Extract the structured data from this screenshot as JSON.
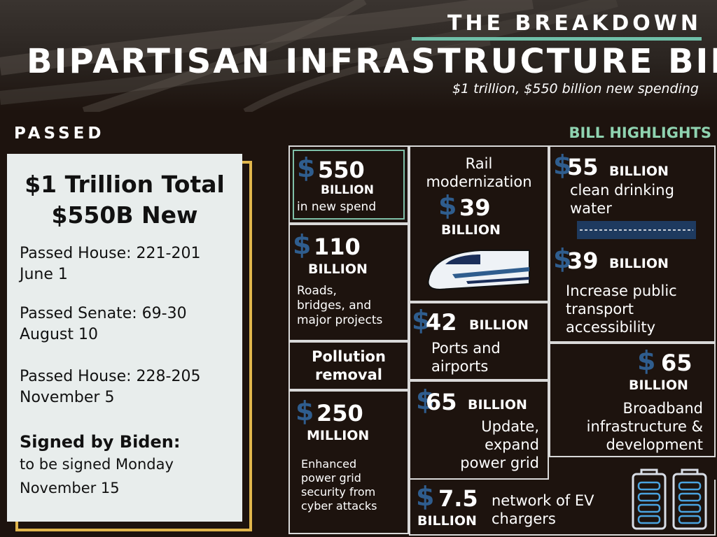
{
  "header": {
    "kicker": "THE BREAKDOWN",
    "title": "BIPARTISAN INFRASTRUCTURE BILL",
    "subtitle": "$1 trillion, $550 billion new spending"
  },
  "sections": {
    "passed": "PASSED",
    "highlights": "BILL HIGHLIGHTS"
  },
  "summary": {
    "total_line1": "$1 Trillion Total",
    "total_line2": "$550B New",
    "house1_label": "Passed House: 221-201",
    "house1_date": "June 1",
    "senate_label": "Passed Senate: 69-30",
    "senate_date": "August 10",
    "house2_label": "Passed House: 228-205",
    "house2_date": "November 5",
    "signed_label": "Signed by Biden:",
    "signed_line1": "to be signed Monday",
    "signed_line2": "November 15"
  },
  "highlights": {
    "new_spend": {
      "amount": "550",
      "unit": "BILLION",
      "desc": "in new spend"
    },
    "roads": {
      "amount": "110",
      "unit": "BILLION",
      "desc1": "Roads,",
      "desc2": "bridges, and",
      "desc3": "major projects"
    },
    "pollution": {
      "line1": "Pollution",
      "line2": "removal"
    },
    "cyber": {
      "amount": "250",
      "unit": "MILLION",
      "desc1": "Enhanced",
      "desc2": "power grid",
      "desc3": "security from",
      "desc4": "cyber attacks"
    },
    "rail": {
      "title1": "Rail",
      "title2": "modernization",
      "amount": "39",
      "unit": "BILLION"
    },
    "ports": {
      "amount": "42",
      "unit": "BILLION",
      "desc1": "Ports and",
      "desc2": "airports"
    },
    "grid": {
      "amount": "65",
      "unit": "BILLION",
      "desc1": "Update,",
      "desc2": "expand",
      "desc3": "power grid"
    },
    "water": {
      "amount": "55",
      "unit": "BILLION",
      "desc1": "clean drinking",
      "desc2": "water"
    },
    "transit": {
      "amount": "39",
      "unit": "BILLION",
      "desc1": "Increase public",
      "desc2": "transport",
      "desc3": "accessibility"
    },
    "broadband": {
      "amount": "65",
      "unit": "BILLION",
      "desc1": "Broadband",
      "desc2": "infrastructure &",
      "desc3": "development"
    },
    "ev": {
      "amount": "7.5",
      "unit": "BILLION",
      "desc1": "network of EV",
      "desc2": "chargers"
    }
  },
  "symbols": {
    "dollar": "$"
  },
  "icons": [
    "train-icon",
    "road-icon",
    "battery-icon"
  ],
  "colors": {
    "background": "#1d130e",
    "accent_teal": "#6fbfa8",
    "dollar_blue": "#2f5d8e",
    "card_border_gold": "#e0b64c",
    "card_bg": "#e8edec"
  }
}
